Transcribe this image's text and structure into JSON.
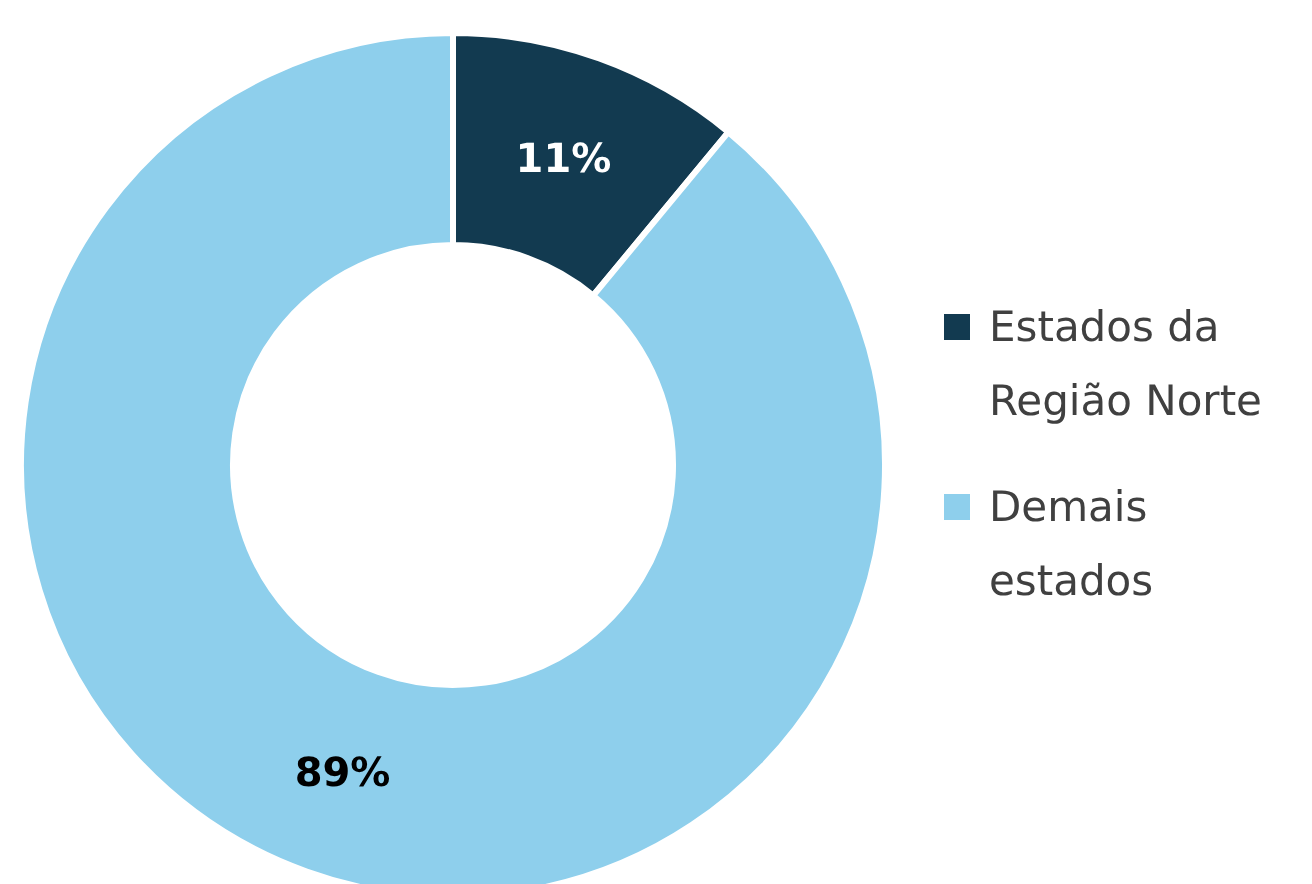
{
  "chart_data": {
    "type": "donut",
    "categories": [
      "Estados da Região Norte",
      "Demais estados"
    ],
    "values": [
      11,
      89
    ],
    "colors": [
      "#123a50",
      "#8ecfec"
    ],
    "value_labels": [
      "11%",
      "89%"
    ],
    "legend": "right"
  }
}
